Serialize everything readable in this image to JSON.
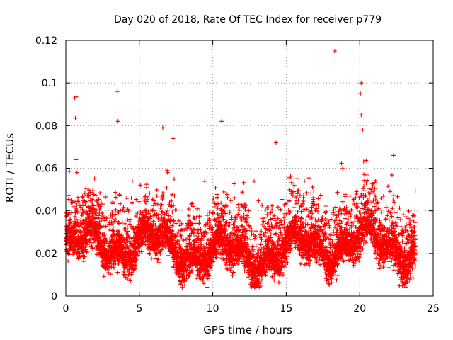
{
  "chart_data": {
    "type": "scatter",
    "title": "Day 020 of 2018, Rate Of TEC Index for receiver p779",
    "xlabel": "GPS time / hours",
    "ylabel": "ROTI / TECUs",
    "xlim": [
      0,
      25
    ],
    "ylim": [
      0,
      0.12
    ],
    "x_ticks": [
      0,
      5,
      10,
      15,
      20,
      25
    ],
    "x_tick_labels": [
      "0",
      "5",
      "10",
      "15",
      "20",
      "25"
    ],
    "y_ticks": [
      0,
      0.02,
      0.04,
      0.06,
      0.08,
      0.1,
      0.12
    ],
    "y_tick_labels": [
      "0",
      "0.02",
      "0.04",
      "0.06",
      "0.08",
      "0.1",
      "0.12"
    ],
    "grid": true,
    "marker": "+",
    "series": [
      {
        "name": "ROTI",
        "color": "#ff0000",
        "x_range": [
          0,
          23.8
        ],
        "x_step": 0.01,
        "typical_range": [
          0.008,
          0.035
        ],
        "notable_points": [
          {
            "x": 0.6,
            "y": 0.093
          },
          {
            "x": 0.7,
            "y": 0.0935
          },
          {
            "x": 0.65,
            "y": 0.0835
          },
          {
            "x": 0.7,
            "y": 0.064
          },
          {
            "x": 3.5,
            "y": 0.096
          },
          {
            "x": 3.55,
            "y": 0.082
          },
          {
            "x": 6.6,
            "y": 0.079
          },
          {
            "x": 7.3,
            "y": 0.074
          },
          {
            "x": 10.6,
            "y": 0.082
          },
          {
            "x": 18.3,
            "y": 0.115
          },
          {
            "x": 20.1,
            "y": 0.1
          },
          {
            "x": 20.05,
            "y": 0.095
          },
          {
            "x": 20.1,
            "y": 0.085
          },
          {
            "x": 20.2,
            "y": 0.078
          },
          {
            "x": 14.3,
            "y": 0.072
          },
          {
            "x": 22.3,
            "y": 0.066
          }
        ]
      }
    ]
  }
}
